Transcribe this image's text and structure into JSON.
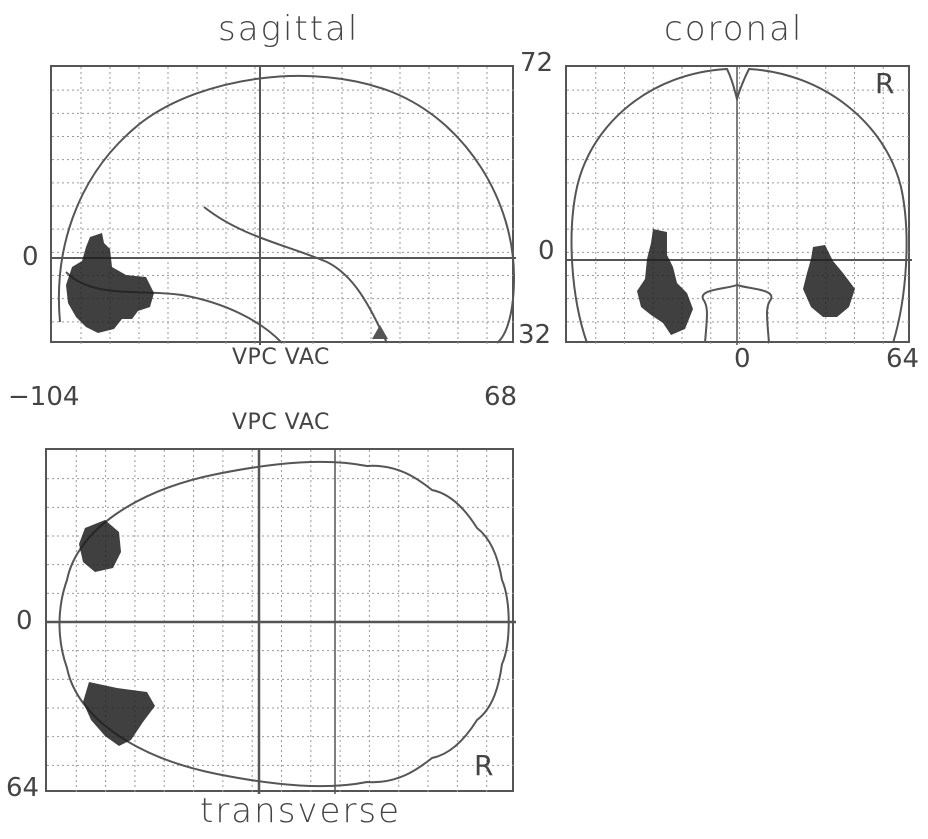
{
  "figure": {
    "panels": {
      "sagittal": {
        "title": "sagittal",
        "tick_left_mid": "0",
        "axis_caption": "VPC VAC"
      },
      "coronal": {
        "title": "coronal",
        "tick_top": "72",
        "tick_mid": "0",
        "tick_bottom": "32",
        "tick_x_center": "0",
        "tick_x_right": "64",
        "side_marker": "R"
      },
      "transverse": {
        "title": "transverse",
        "axis_caption": "VPC VAC",
        "tick_mid": "0",
        "tick_bottom": "64",
        "side_marker": "R"
      }
    },
    "x_range_labels": {
      "left": "−104",
      "right": "68"
    }
  },
  "colors": {
    "line": "#555555",
    "grid": "#9a9a9a",
    "activation": "#1e1e1e",
    "background": "#ffffff"
  }
}
